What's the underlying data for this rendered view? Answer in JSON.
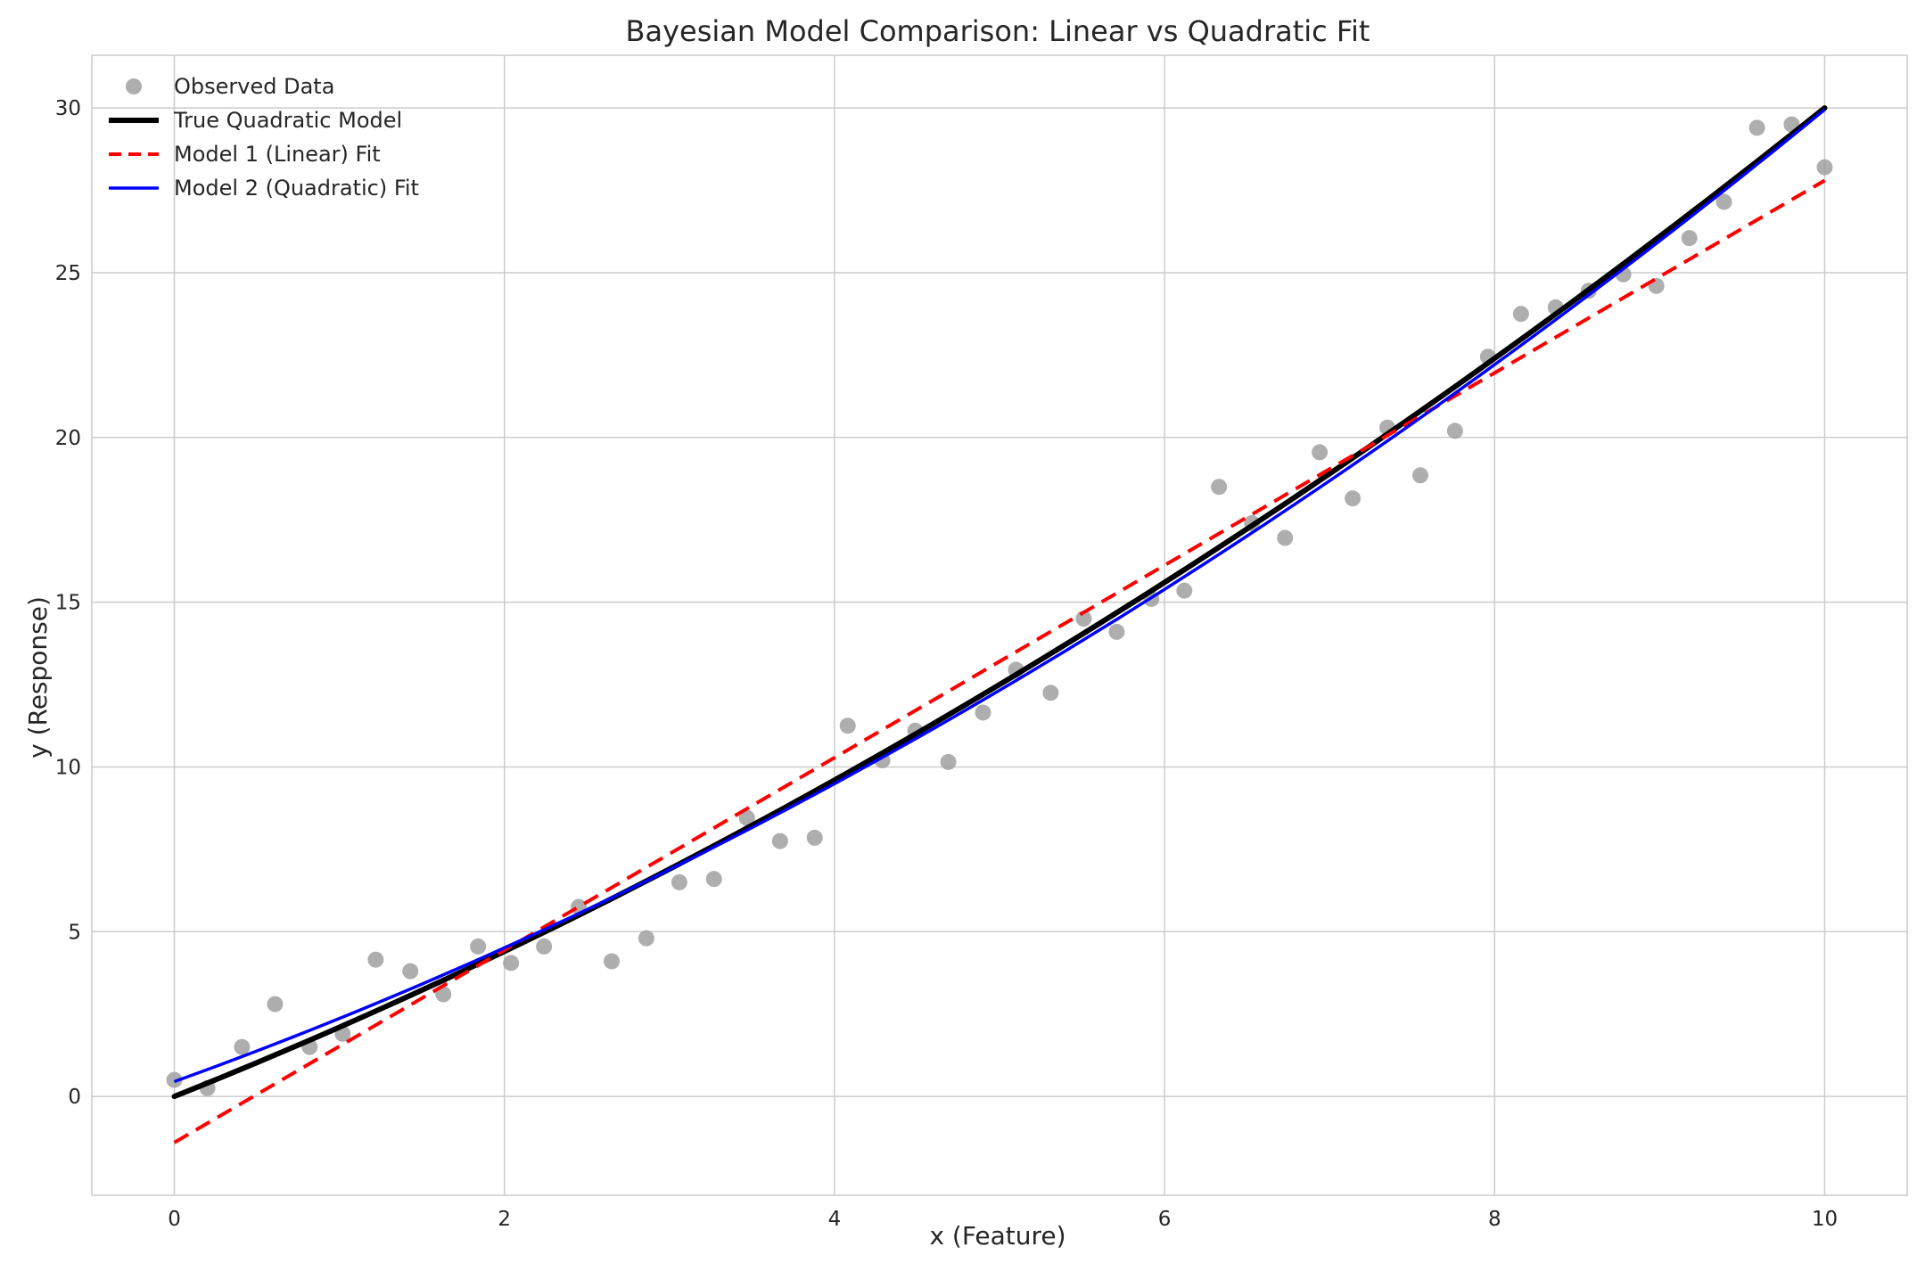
{
  "chart_data": {
    "type": "line",
    "title": "Bayesian Model Comparison: Linear vs Quadratic Fit",
    "xlabel": "x (Feature)",
    "ylabel": "y (Response)",
    "xlim": [
      -0.5,
      10.5
    ],
    "ylim": [
      -3,
      31.6
    ],
    "xticks": [
      0,
      2,
      4,
      6,
      8,
      10
    ],
    "yticks": [
      0,
      5,
      10,
      15,
      20,
      25,
      30
    ],
    "grid": true,
    "legend_position": "top-left",
    "colors": {
      "observed": "#a0a0a0",
      "true_model": "#000000",
      "linear": "#ff0000",
      "quadratic": "#0000ff",
      "grid": "#cccccc",
      "axes": "#cccccc"
    },
    "legend": [
      {
        "key": "observed",
        "label": "Observed Data"
      },
      {
        "key": "true_model",
        "label": "True Quadratic Model"
      },
      {
        "key": "linear",
        "label": "Model 1 (Linear) Fit"
      },
      {
        "key": "quadratic",
        "label": "Model 2 (Quadratic) Fit"
      }
    ],
    "observed": {
      "x": [
        0.0,
        0.2,
        0.41,
        0.61,
        0.82,
        1.02,
        1.22,
        1.43,
        1.63,
        1.84,
        2.04,
        2.24,
        2.45,
        2.65,
        2.86,
        3.06,
        3.27,
        3.47,
        3.67,
        3.88,
        4.08,
        4.29,
        4.49,
        4.69,
        4.9,
        5.1,
        5.31,
        5.51,
        5.71,
        5.92,
        6.12,
        6.33,
        6.53,
        6.73,
        6.94,
        7.14,
        7.35,
        7.55,
        7.76,
        7.96,
        8.16,
        8.37,
        8.57,
        8.78,
        8.98,
        9.18,
        9.39,
        9.59,
        9.8,
        10.0
      ],
      "y": [
        0.5,
        0.25,
        1.5,
        2.8,
        1.5,
        1.9,
        4.15,
        3.8,
        3.1,
        4.55,
        4.05,
        4.55,
        5.75,
        4.1,
        4.8,
        6.5,
        6.6,
        8.45,
        7.75,
        7.85,
        11.25,
        10.2,
        11.1,
        10.15,
        11.65,
        12.95,
        12.25,
        14.5,
        14.1,
        15.1,
        15.35,
        18.5,
        17.4,
        16.95,
        19.55,
        18.15,
        20.3,
        18.85,
        20.2,
        22.45,
        23.75,
        23.95,
        24.45,
        24.95,
        24.6,
        26.05,
        27.15,
        29.4,
        29.5,
        28.2
      ]
    },
    "true_model": {
      "a": 0.1,
      "b": 2.0,
      "c": 0.0
    },
    "linear_fit": {
      "slope": 2.92,
      "intercept": -1.4
    },
    "quadratic_fit": {
      "a": 0.115,
      "b": 1.8,
      "c": 0.45
    },
    "x_range": [
      0,
      10
    ]
  }
}
